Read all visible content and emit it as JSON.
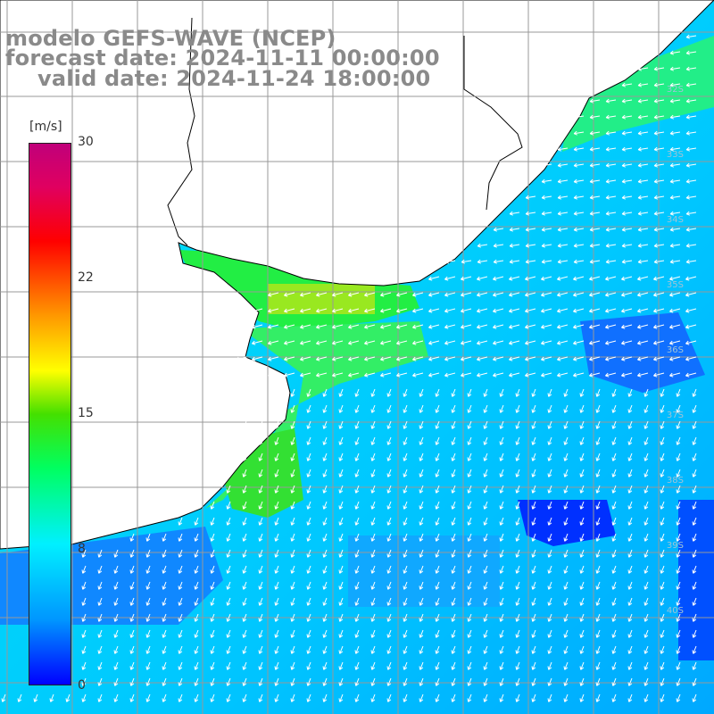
{
  "title": {
    "line1": "modelo GEFS-WAVE (NCEP)",
    "line2": "forecast date: 2024-11-11 00:00:00",
    "line3": "valid date: 2024-11-24 18:00:00"
  },
  "colorbar": {
    "unit": "[m/s]",
    "ticks": [
      "30",
      "22",
      "15",
      "8",
      "0"
    ],
    "colors": [
      "#0000ff",
      "#0096ff",
      "#00f0ff",
      "#00ff60",
      "#44e000",
      "#ffff00",
      "#ff9a00",
      "#ff0000",
      "#c0007a"
    ]
  },
  "lat_labels": [
    "32S",
    "33S",
    "34S",
    "35S",
    "36S",
    "37S",
    "38S",
    "39S",
    "40S"
  ],
  "map": {
    "land_color": "#ffffff",
    "grid_color": "#999999",
    "coast_color": "#000000"
  }
}
